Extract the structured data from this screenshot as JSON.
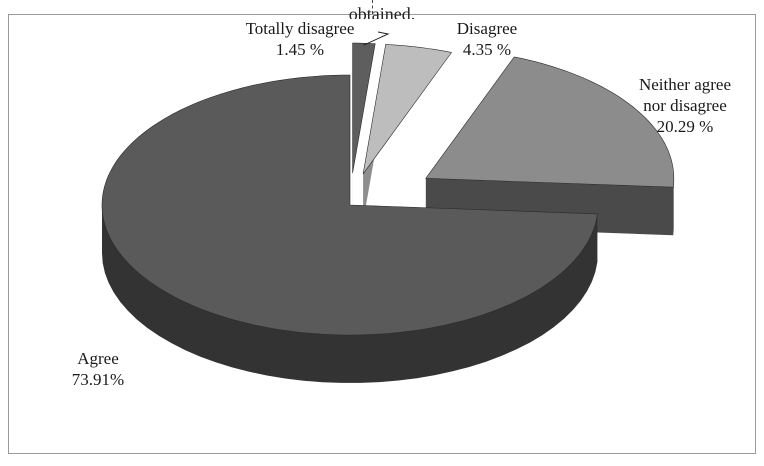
{
  "chart_data": {
    "type": "pie",
    "title": "obtained.",
    "labels": [
      "Totally disagree",
      "Disagree",
      "Neither agree nor disagree",
      "Agree"
    ],
    "values": [
      1.45,
      4.35,
      20.29,
      73.91
    ],
    "value_labels": [
      "1.45 %",
      "4.35  %",
      "20.29 %",
      "73.91%"
    ],
    "label_lines": [
      [
        "Totally disagree"
      ],
      [
        "Disagree"
      ],
      [
        "Neither agree",
        "nor disagree"
      ],
      [
        "Agree"
      ]
    ],
    "colors": [
      "#5e5e5e",
      "#bdbdbd",
      "#8c8c8c",
      "#5a5a5a"
    ],
    "side_colors": [
      "#3a3a3a",
      "#8e8e8e",
      "#4a4a4a",
      "#333333"
    ],
    "style": "3d-exploded",
    "legend": "none"
  }
}
